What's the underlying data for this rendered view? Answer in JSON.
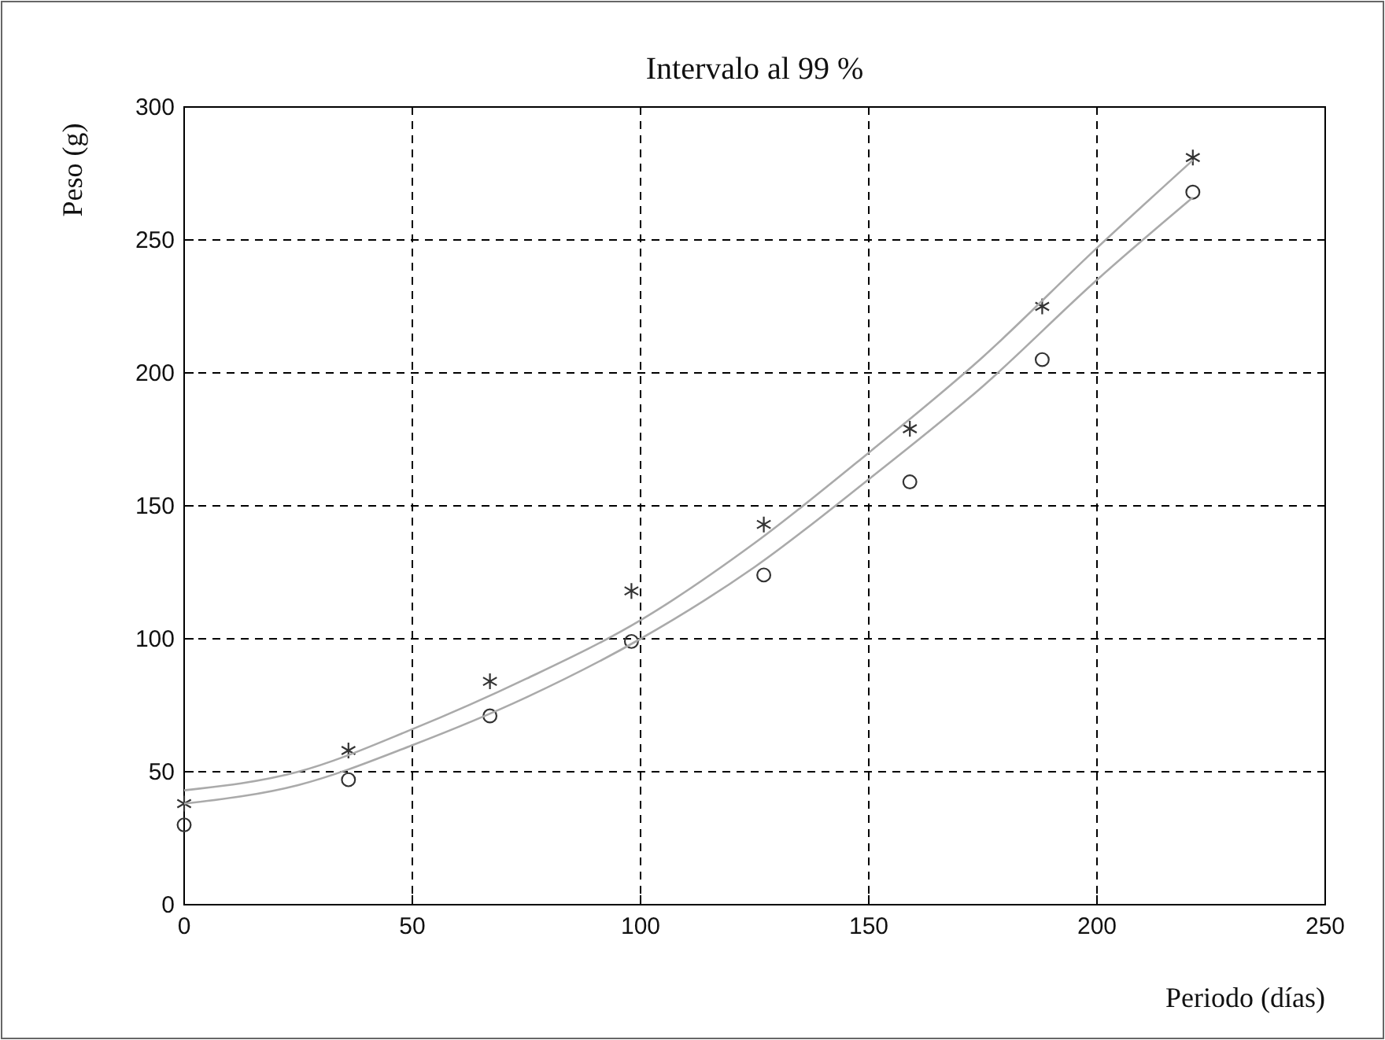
{
  "chart_data": {
    "type": "scatter",
    "title": "Intervalo al 99 %",
    "xlabel": "Periodo (días)",
    "ylabel": "Peso (g)",
    "xlim": [
      0,
      250
    ],
    "xticks": [
      0,
      50,
      100,
      150,
      200,
      250
    ],
    "ylim": [
      0,
      300
    ],
    "yticks": [
      0,
      50,
      100,
      150,
      200,
      250,
      300
    ],
    "grid": true,
    "series": [
      {
        "marker": "cross",
        "color": "#333333",
        "x": [
          0,
          36,
          67,
          98,
          127,
          159,
          188,
          221
        ],
        "values": [
          38,
          58,
          84,
          118,
          143,
          179,
          225,
          281
        ]
      },
      {
        "marker": "circle",
        "color": "#333333",
        "x": [
          0,
          36,
          67,
          98,
          127,
          159,
          188,
          221
        ],
        "values": [
          30,
          47,
          71,
          99,
          124,
          159,
          205,
          268
        ]
      },
      {
        "type": "line",
        "color": "#aaaaaa",
        "x": [
          0,
          25,
          50,
          75,
          100,
          125,
          150,
          175,
          200,
          221
        ],
        "values": [
          43,
          50,
          66,
          85,
          107,
          136,
          170,
          206,
          247,
          280
        ]
      },
      {
        "type": "line",
        "color": "#aaaaaa",
        "x": [
          0,
          25,
          50,
          75,
          100,
          125,
          150,
          175,
          200,
          221
        ],
        "values": [
          38,
          45,
          60,
          78,
          100,
          127,
          160,
          195,
          235,
          266
        ]
      }
    ]
  }
}
